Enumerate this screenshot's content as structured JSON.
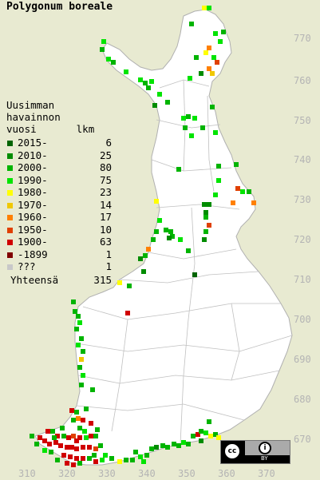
{
  "title": "Polygonum boreale",
  "legend": {
    "header_lines": [
      "Uusimman",
      "havainnon"
    ],
    "col_year": "vuosi",
    "col_count": "lkm",
    "rows": [
      {
        "label": "2015-",
        "count": "6",
        "color": "#006400"
      },
      {
        "label": "2010-",
        "count": "25",
        "color": "#008c00"
      },
      {
        "label": "2000-",
        "count": "80",
        "color": "#00b400"
      },
      {
        "label": "1990-",
        "count": "75",
        "color": "#00e400"
      },
      {
        "label": "1980-",
        "count": "23",
        "color": "#ffff00"
      },
      {
        "label": "1970-",
        "count": "14",
        "color": "#f0c800"
      },
      {
        "label": "1960-",
        "count": "17",
        "color": "#ff8000"
      },
      {
        "label": "1950-",
        "count": "10",
        "color": "#e04000"
      },
      {
        "label": "1900-",
        "count": "63",
        "color": "#d00000"
      },
      {
        "label": "-1899",
        "count": "1",
        "color": "#800000"
      },
      {
        "label": "???",
        "count": "1",
        "color": "#c8c8c8"
      }
    ],
    "total_label": "Yhteensä",
    "total_count": "315"
  },
  "grid": {
    "y_labels": [
      "770",
      "760",
      "750",
      "740",
      "730",
      "720",
      "710",
      "700",
      "690",
      "680",
      "670"
    ],
    "x_labels": [
      "310",
      "320",
      "330",
      "340",
      "350",
      "360",
      "370"
    ]
  },
  "license": {
    "cc": "cc",
    "attribution": "BY"
  },
  "colors": {
    "background": "#e8ead1",
    "land": "#ffffff",
    "borders": "#b4b4b4"
  }
}
